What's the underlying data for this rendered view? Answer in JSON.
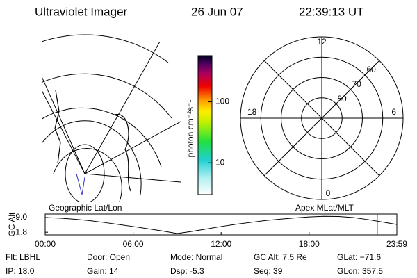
{
  "header": {
    "instrument": "Ultraviolet Imager",
    "date": "26 Jun 07",
    "time": "22:39:13 UT"
  },
  "left_panel": {
    "label": "Geographic Lat/Lon"
  },
  "colorbar": {
    "label": "photon cm⁻²s⁻¹",
    "log": true,
    "lim": [
      3,
      575
    ],
    "ticks": [
      10,
      100
    ]
  },
  "right_panel": {
    "label": "Apex MLat/MLT",
    "mlt_ticks": [
      12,
      18,
      6,
      0
    ],
    "lat_ticks": [
      60,
      70,
      80
    ],
    "lat_limit": 50
  },
  "chart_data": {
    "type": "line",
    "ylabel": "GC Alt",
    "x": [
      0,
      1,
      2,
      3,
      4,
      5,
      6,
      7,
      8,
      9,
      10,
      11,
      12,
      13,
      14,
      15,
      16,
      17,
      18,
      19,
      20,
      21,
      22,
      23,
      23.98
    ],
    "values": [
      9.0,
      8.7,
      8.2,
      7.5,
      6.6,
      5.6,
      4.6,
      3.5,
      2.4,
      1.2,
      2.2,
      3.4,
      4.6,
      5.7,
      6.6,
      7.5,
      8.2,
      8.8,
      9.3,
      9.6,
      9.5,
      9.0,
      8.0,
      6.8,
      5.6
    ],
    "color": "#000000",
    "current_time": 22.65,
    "current_color": "#cc0000",
    "xlim": [
      0,
      23.98
    ],
    "xticks": [
      {
        "value": 0,
        "label": "00:00"
      },
      {
        "value": 6,
        "label": "06:00"
      },
      {
        "value": 12,
        "label": "12:00"
      },
      {
        "value": 18,
        "label": "18:00"
      },
      {
        "value": 23.98,
        "label": "23:59"
      }
    ],
    "ylim": [
      0.5,
      10.7
    ],
    "yticks": [
      {
        "value": 9.0,
        "label": "9.0"
      },
      {
        "value": 1.8,
        "label": "1.8"
      }
    ]
  },
  "footer": [
    [
      "Flt: LBHL",
      "Door: Open",
      "Mode: Normal",
      "GC Alt: 7.5 Re",
      "GLat: −71.6"
    ],
    [
      "IP: 18.0",
      "Gain: 14",
      "Dsp: -5.3",
      "Seq: 39",
      "GLon: 357.5"
    ]
  ]
}
